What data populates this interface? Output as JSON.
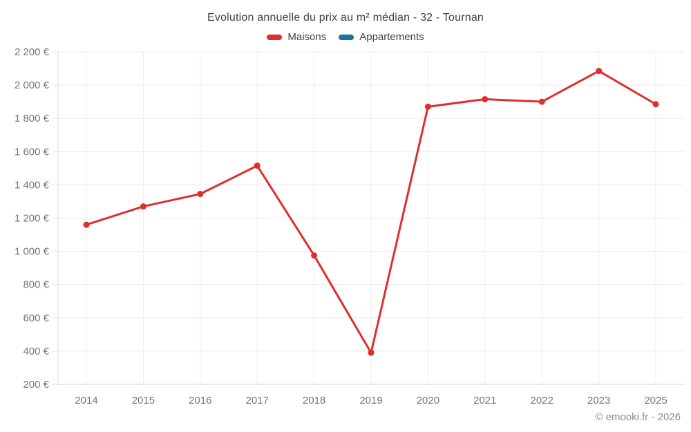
{
  "chart_data": {
    "type": "line",
    "title": "Evolution annuelle du prix au m² médian - 32 - Tournan",
    "categories": [
      "2014",
      "2015",
      "2016",
      "2017",
      "2018",
      "2019",
      "2020",
      "2021",
      "2022",
      "2023",
      "2025"
    ],
    "series": [
      {
        "name": "Maisons",
        "color": "#e02d2d",
        "values": [
          1160,
          1270,
          1345,
          1515,
          975,
          390,
          1870,
          1915,
          1900,
          2085,
          1885
        ]
      },
      {
        "name": "Appartements",
        "color": "#1a73a8",
        "values": []
      }
    ],
    "ylim": [
      200,
      2200
    ],
    "ytick_step": 200,
    "ytick_labels": [
      "200 €",
      "400 €",
      "600 €",
      "800 €",
      "1 000 €",
      "1 200 €",
      "1 400 €",
      "1 600 €",
      "1 800 €",
      "2 000 €",
      "2 200 €"
    ],
    "grid": true,
    "legend_position": "top",
    "footer": "© emooki.fr - 2026",
    "colors": {
      "grid": "#ececec",
      "axis": "#d9d9d9",
      "tick_text": "#757575",
      "title_text": "#424242",
      "footer_text": "#8c8c8c"
    }
  }
}
